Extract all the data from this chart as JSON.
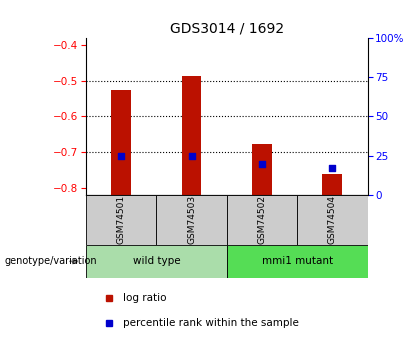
{
  "title": "GDS3014 / 1692",
  "samples": [
    "GSM74501",
    "GSM74503",
    "GSM74502",
    "GSM74504"
  ],
  "log_ratios": [
    -0.526,
    -0.487,
    -0.677,
    -0.762
  ],
  "percentile_ranks": [
    25,
    25,
    20,
    17
  ],
  "groups": [
    {
      "label": "wild type",
      "indices": [
        0,
        1
      ],
      "color": "#aaddaa"
    },
    {
      "label": "mmi1 mutant",
      "indices": [
        2,
        3
      ],
      "color": "#55dd55"
    }
  ],
  "ylim_left": [
    -0.82,
    -0.38
  ],
  "ylim_right": [
    0,
    100
  ],
  "yticks_left": [
    -0.8,
    -0.7,
    -0.6,
    -0.5,
    -0.4
  ],
  "yticks_right": [
    0,
    25,
    50,
    75,
    100
  ],
  "ytick_labels_right": [
    "0",
    "25",
    "50",
    "75",
    "100%"
  ],
  "hgrid_ticks": [
    -0.5,
    -0.6,
    -0.7
  ],
  "bar_color": "#bb1100",
  "dot_color": "#0000cc",
  "bar_width": 0.28,
  "background_color": "#ffffff",
  "label_area_color": "#cccccc",
  "legend_items": [
    "log ratio",
    "percentile rank within the sample"
  ],
  "genotype_label": "genotype/variation"
}
